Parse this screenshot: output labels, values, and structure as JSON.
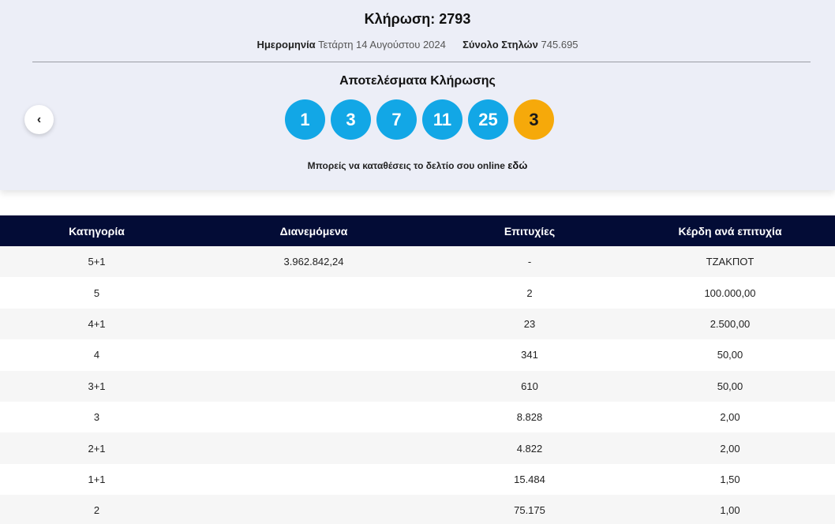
{
  "draw": {
    "title": "Κλήρωση: 2793",
    "date_label": "Ημερομηνία",
    "date_value": "Τετάρτη 14 Αυγούστου 2024",
    "columns_label": "Σύνολο Στηλών",
    "columns_value": "745.695",
    "results_title": "Αποτελέσματα Κλήρωσης",
    "numbers": [
      "1",
      "3",
      "7",
      "11",
      "25"
    ],
    "bonus": "3",
    "online_note": "Μπορείς να καταθέσεις το δελτίο σου online",
    "online_link": "εδώ",
    "prev_icon": "chevron-left-icon"
  },
  "colors": {
    "ball": "#12a7e6",
    "bonus_ball": "#f6a90a",
    "table_header": "#030c36",
    "panel_bg": "#eceef7"
  },
  "table": {
    "headers": [
      "Κατηγορία",
      "Διανεμόμενα",
      "Επιτυχίες",
      "Κέρδη ανά επιτυχία"
    ],
    "rows": [
      [
        "5+1",
        "3.962.842,24",
        "-",
        "ΤΖΑΚΠΟΤ"
      ],
      [
        "5",
        "",
        "2",
        "100.000,00"
      ],
      [
        "4+1",
        "",
        "23",
        "2.500,00"
      ],
      [
        "4",
        "",
        "341",
        "50,00"
      ],
      [
        "3+1",
        "",
        "610",
        "50,00"
      ],
      [
        "3",
        "",
        "8.828",
        "2,00"
      ],
      [
        "2+1",
        "",
        "4.822",
        "2,00"
      ],
      [
        "1+1",
        "",
        "15.484",
        "1,50"
      ],
      [
        "2",
        "",
        "75.175",
        "1,00"
      ]
    ]
  }
}
